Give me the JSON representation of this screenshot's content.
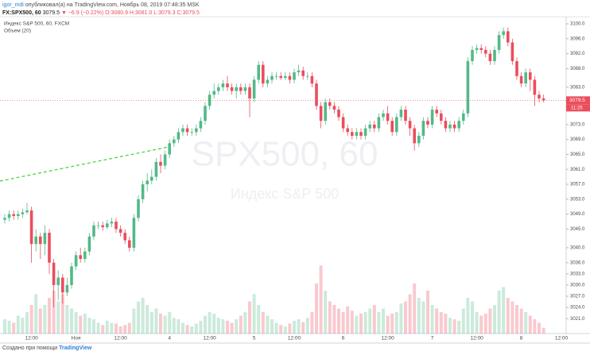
{
  "header": {
    "author": "igor_mdi",
    "published": "опубликовал(а) на TradingView.com, Ноябрь 08, 2019 07:48:35 MSK",
    "symbol": "FX:SPX500, 60",
    "last": "3079.5",
    "change": "▼ −6.9 (−0.22%)",
    "ohlc": "O:3080.9 H:3081.0 L:3079.3 C:3079.5"
  },
  "chart_data": {
    "type": "candlestick",
    "legend_title": "Индекс S&P 500, 60, FXCM",
    "volume_title": "Объем (20)",
    "watermark": "SPX500, 60",
    "watermark_subtitle": "Индекс S&P 500",
    "categories": [
      null,
      null,
      null,
      null,
      null,
      null,
      "12:00",
      null,
      null,
      null,
      null,
      null,
      null,
      null,
      null,
      null,
      "Ноя",
      null,
      null,
      null,
      null,
      null,
      null,
      null,
      null,
      null,
      "12:00",
      null,
      null,
      null,
      null,
      null,
      null,
      null,
      null,
      null,
      null,
      "4",
      null,
      null,
      null,
      null,
      null,
      null,
      null,
      null,
      "12:00",
      null,
      null,
      null,
      null,
      null,
      null,
      null,
      null,
      null,
      "5",
      null,
      null,
      null,
      null,
      null,
      null,
      null,
      null,
      "12:00",
      null,
      null,
      null,
      null,
      null,
      null,
      null,
      null,
      null,
      null,
      "6",
      null,
      null,
      null,
      null,
      null,
      null,
      null,
      null,
      null,
      "12:00",
      null,
      null,
      null,
      null,
      null,
      null,
      null,
      null,
      null,
      "7",
      null,
      null,
      null,
      null,
      null,
      null,
      null,
      null,
      null,
      "12:00",
      null,
      null,
      null,
      null,
      null,
      null,
      null,
      null,
      null,
      "8",
      null,
      null,
      null,
      null,
      null,
      null,
      null,
      null,
      "12:00"
    ],
    "open": [
      3047.5,
      3048,
      3049,
      3048.5,
      3049,
      3049.5,
      3050,
      3041,
      3043,
      3041,
      3044,
      3036,
      3030,
      3032,
      3028,
      3030,
      3035,
      3038,
      3037,
      3039,
      3043,
      3046,
      3046,
      3045.5,
      3046.5,
      3047,
      3045,
      3044,
      3042,
      3040,
      3048,
      3053,
      3057,
      3058,
      3059,
      3063,
      3062,
      3065,
      3068,
      3069,
      3071,
      3072,
      3071,
      3071,
      3072,
      3074,
      3078,
      3081,
      3082,
      3083,
      3084,
      3083,
      3082,
      3083,
      3082,
      3083,
      3080,
      3085,
      3089,
      3084,
      3085,
      3086,
      3086,
      3085.5,
      3086,
      3085,
      3087,
      3087.5,
      3086,
      3086,
      3084,
      3078,
      3074,
      3079,
      3078,
      3077,
      3075,
      3072,
      3071,
      3070,
      3071,
      3070,
      3072,
      3073,
      3072,
      3075,
      3076,
      3074,
      3071,
      3075,
      3077,
      3074,
      3072,
      3068,
      3070,
      3074,
      3073,
      3077,
      3076,
      3074,
      3072,
      3073,
      3072,
      3074,
      3076,
      3090,
      3093,
      3093.5,
      3093,
      3092,
      3090,
      3093,
      3097,
      3098,
      3095,
      3090,
      3086,
      3084,
      3087,
      3085,
      3081,
      3080,
      null,
      null,
      null,
      null
    ],
    "high": [
      3049,
      3050,
      3050,
      3050,
      3050.5,
      3052,
      3051,
      3045,
      3044,
      3046,
      3045,
      3037,
      3034,
      3033,
      3032,
      3036,
      3039,
      3040,
      3040,
      3044,
      3047,
      3047,
      3047,
      3047.5,
      3048,
      3048,
      3046,
      3045,
      3043,
      3049,
      3054,
      3058,
      3060,
      3061,
      3064,
      3065,
      3066,
      3069,
      3070,
      3072,
      3073,
      3073,
      3072,
      3073,
      3075,
      3079,
      3082,
      3084,
      3084,
      3085,
      3086,
      3084,
      3084,
      3084,
      3084,
      3084,
      3086,
      3090,
      3090,
      3086,
      3087,
      3087,
      3087,
      3087,
      3087,
      3088,
      3089,
      3088.5,
      3087,
      3087,
      3085,
      3079,
      3080,
      3080,
      3079,
      3078,
      3076,
      3073,
      3072,
      3072,
      3072,
      3073,
      3074,
      3074,
      3076,
      3077,
      3078,
      3075,
      3076,
      3078,
      3078,
      3075,
      3073,
      3071,
      3075,
      3075,
      3078,
      3078,
      3077,
      3075,
      3074,
      3074,
      3075,
      3077,
      3091,
      3094,
      3094.5,
      3094.5,
      3094,
      3093,
      3094,
      3098,
      3099,
      3099,
      3096,
      3091,
      3087,
      3088,
      3088,
      3086,
      3082,
      3081,
      null,
      null,
      null,
      null
    ],
    "low": [
      3046.5,
      3047,
      3047.5,
      3047.5,
      3048,
      3049,
      3036,
      3039,
      3037,
      3038,
      3033,
      3024,
      3026,
      3025,
      3027,
      3029,
      3034,
      3036,
      3036,
      3038,
      3042,
      3045,
      3044.5,
      3045,
      3045.5,
      3044,
      3043,
      3041,
      3039,
      3039,
      3047,
      3052,
      3055,
      3057,
      3058,
      3060,
      3061,
      3064,
      3067,
      3068,
      3070,
      3070,
      3070,
      3070,
      3071,
      3073,
      3077,
      3080,
      3081,
      3082,
      3082,
      3081,
      3080,
      3081,
      3081,
      3075,
      3079,
      3084,
      3083,
      3083,
      3084,
      3085,
      3085,
      3085,
      3084,
      3084,
      3086,
      3085,
      3085,
      3083,
      3077,
      3072,
      3073,
      3077,
      3076,
      3074,
      3071,
      3070,
      3069,
      3069,
      3069,
      3069,
      3071,
      3071,
      3071,
      3074,
      3073,
      3070,
      3070,
      3074,
      3073,
      3070,
      3066,
      3067,
      3069,
      3072,
      3072,
      3075,
      3073,
      3071,
      3071,
      3071,
      3071,
      3073,
      3075,
      3089,
      3092,
      3092,
      3091,
      3089,
      3089,
      3092,
      3096,
      3094,
      3089,
      3085,
      3083,
      3083,
      3082,
      3078,
      3079,
      3079,
      null,
      null,
      null,
      null
    ],
    "close": [
      3048,
      3049,
      3048.5,
      3049,
      3049.5,
      3050,
      3041,
      3043,
      3041,
      3044,
      3036,
      3030,
      3032,
      3028,
      3030,
      3035,
      3038,
      3037,
      3039,
      3043,
      3046,
      3046,
      3045.5,
      3046.5,
      3047,
      3045,
      3044,
      3042,
      3040,
      3048,
      3053,
      3057,
      3058,
      3059,
      3063,
      3062,
      3065,
      3068,
      3069,
      3071,
      3072,
      3071,
      3071,
      3072,
      3074,
      3078,
      3081,
      3082,
      3083,
      3084,
      3083,
      3082,
      3083,
      3082,
      3083,
      3080,
      3085,
      3089,
      3084,
      3085,
      3086,
      3086,
      3085.5,
      3086,
      3085,
      3087,
      3087.5,
      3086,
      3086,
      3084,
      3078,
      3074,
      3079,
      3078,
      3077,
      3075,
      3072,
      3071,
      3070,
      3071,
      3070,
      3072,
      3073,
      3072,
      3075,
      3076,
      3074,
      3071,
      3075,
      3077,
      3074,
      3072,
      3068,
      3070,
      3074,
      3073,
      3077,
      3076,
      3074,
      3072,
      3073,
      3072,
      3074,
      3076,
      3090,
      3093,
      3093.5,
      3093,
      3092,
      3090,
      3093,
      3097,
      3098,
      3095,
      3090,
      3086,
      3084,
      3087,
      3085,
      3081,
      3080,
      3079.5,
      null,
      null,
      null,
      null
    ],
    "volume": [
      20,
      18,
      15,
      25,
      22,
      30,
      40,
      55,
      35,
      40,
      50,
      60,
      45,
      55,
      40,
      35,
      30,
      25,
      28,
      22,
      20,
      15,
      12,
      18,
      15,
      14,
      10,
      12,
      15,
      35,
      45,
      50,
      40,
      30,
      35,
      28,
      25,
      30,
      22,
      20,
      15,
      12,
      10,
      14,
      18,
      25,
      30,
      28,
      22,
      20,
      18,
      15,
      20,
      25,
      30,
      45,
      55,
      40,
      30,
      25,
      20,
      15,
      12,
      10,
      14,
      18,
      20,
      16,
      22,
      30,
      70,
      95,
      60,
      45,
      40,
      35,
      30,
      38,
      32,
      25,
      28,
      30,
      35,
      40,
      30,
      35,
      25,
      28,
      30,
      42,
      45,
      55,
      70,
      50,
      45,
      60,
      40,
      35,
      30,
      28,
      22,
      20,
      18,
      35,
      50,
      45,
      30,
      25,
      28,
      35,
      40,
      60,
      65,
      50,
      45,
      40,
      35,
      30,
      25,
      20,
      15,
      8,
      null,
      null,
      null,
      null
    ],
    "volume_lim": [
      0,
      100
    ],
    "up_color": "#53b987",
    "down_color": "#eb4d5c",
    "ylim": [
      3017,
      3101.7
    ],
    "yticks": [
      {
        "value": 3100,
        "label": "3100.0"
      },
      {
        "value": 3096,
        "label": "3096.0"
      },
      {
        "value": 3092,
        "label": "3092.0"
      },
      {
        "value": 3088,
        "label": "3088.0"
      },
      {
        "value": 3083,
        "label": "3083.0"
      },
      {
        "value": 3073,
        "label": "3073.0"
      },
      {
        "value": 3069,
        "label": "3069.0"
      },
      {
        "value": 3065,
        "label": "3065.0"
      },
      {
        "value": 3061,
        "label": "3061.0"
      },
      {
        "value": 3057,
        "label": "3057.0"
      },
      {
        "value": 3053,
        "label": "3053.0"
      },
      {
        "value": 3049,
        "label": "3049.0"
      },
      {
        "value": 3045,
        "label": "3045.0"
      },
      {
        "value": 3040,
        "label": "3040.0"
      },
      {
        "value": 3036,
        "label": "3036.0"
      },
      {
        "value": 3033,
        "label": "3033.0"
      },
      {
        "value": 3030,
        "label": "3030.0"
      },
      {
        "value": 3027,
        "label": "3027.0"
      },
      {
        "value": 3024,
        "label": "3024.0"
      },
      {
        "value": 3021,
        "label": "3021.0"
      }
    ],
    "last_price": {
      "value": 3079.5,
      "label": "3079.5"
    },
    "countdown": "11:25"
  },
  "footer": {
    "text": "Создано при помощи",
    "brand": "TradingView"
  }
}
